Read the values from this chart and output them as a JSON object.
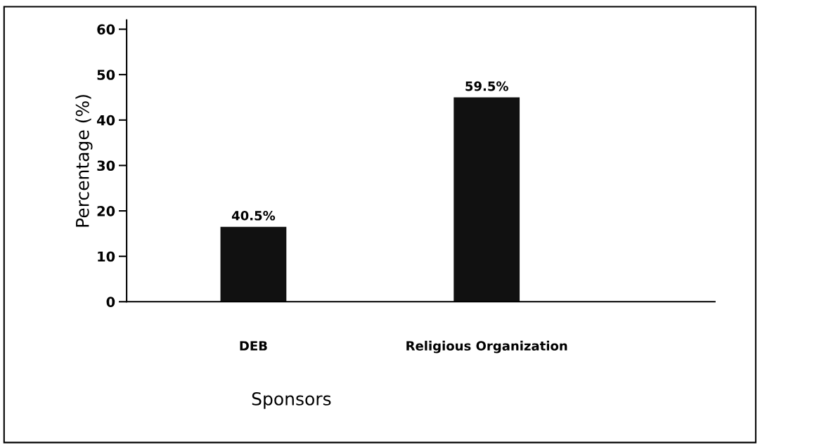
{
  "chart_data": {
    "type": "bar",
    "categories": [
      "DEB",
      "Religious Organization"
    ],
    "values": [
      16.5,
      45
    ],
    "annotations": [
      {
        "text": "40.5%",
        "x": "DEB",
        "y": 16.5
      },
      {
        "text": "59.5%",
        "x": "Religious Organization",
        "y": 45
      }
    ],
    "color": "#111111",
    "xlabel": "Sponsors",
    "ylabel": "Percentage (%)",
    "ylim": [
      0,
      62
    ],
    "yticks": [
      0,
      10,
      20,
      30,
      40,
      50,
      60
    ],
    "grid": false,
    "legend": false
  }
}
